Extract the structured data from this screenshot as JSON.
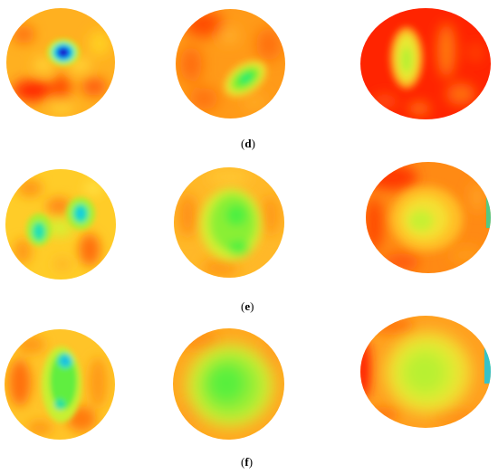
{
  "panels": [
    {
      "label_open": "(",
      "label_letter": "d",
      "label_close": ")"
    },
    {
      "label_open": "(",
      "label_letter": "e",
      "label_close": ")"
    },
    {
      "label_open": "(",
      "label_letter": "f",
      "label_close": ")"
    }
  ],
  "colors": {
    "red": "#ff1a00",
    "orange": "#ff8c1a",
    "yellow": "#ffd21a",
    "yellow_green": "#e8e830",
    "green": "#3cef3c",
    "cyan": "#14e6c8",
    "blue": "#0a3cff",
    "dark_blue": "#1a10a0"
  }
}
